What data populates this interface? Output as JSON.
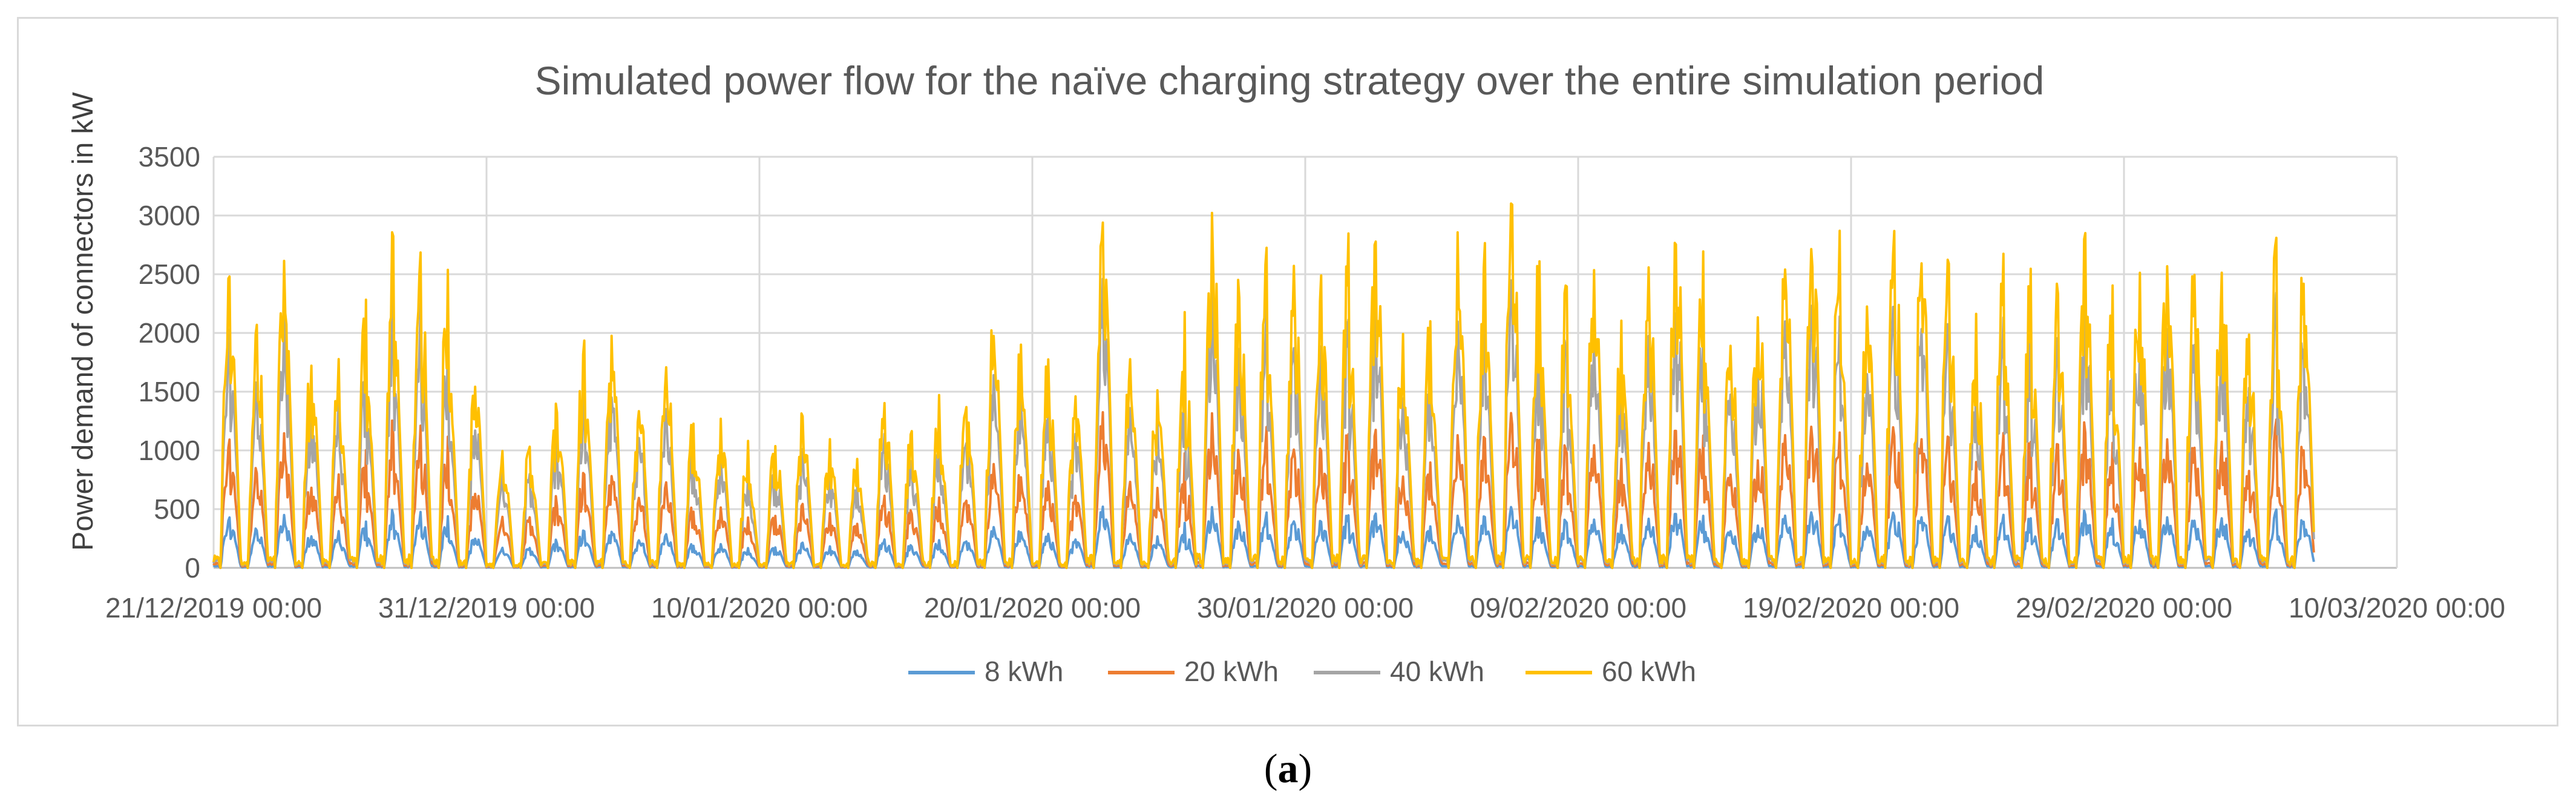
{
  "chart_data": {
    "type": "line",
    "title": "Simulated power flow for the naïve charging strategy over the entire simulation period",
    "ylabel": "Power demand of connectors in kW",
    "xlabel": "",
    "ylim": [
      0,
      3500
    ],
    "yticks": [
      0,
      500,
      1000,
      1500,
      2000,
      2500,
      3000,
      3500
    ],
    "xlim": [
      "2019-12-21 00:00",
      "2020-03-10 00:00"
    ],
    "xtick_labels": [
      "21/12/2019 00:00",
      "31/12/2019 00:00",
      "10/01/2020 00:00",
      "20/01/2020 00:00",
      "30/01/2020 00:00",
      "09/02/2020 00:00",
      "19/02/2020 00:00",
      "29/02/2020 00:00",
      "10/03/2020 00:00"
    ],
    "grid": true,
    "legend_position": "bottom",
    "series": [
      {
        "name": "8 kWh",
        "color": "#5b9bd5",
        "scale": 0.165
      },
      {
        "name": "20 kWh",
        "color": "#ed7d31",
        "scale": 0.42
      },
      {
        "name": "40 kWh",
        "color": "#a5a5a5",
        "scale": 0.78
      },
      {
        "name": "60 kWh",
        "color": "#ffc000",
        "scale": 1.0
      }
    ],
    "daily_peak_60kWh": [
      2600,
      2120,
      2650,
      1850,
      1880,
      2300,
      2870,
      2880,
      2600,
      1600,
      1000,
      1050,
      1400,
      1990,
      2000,
      1400,
      1830,
      1320,
      1280,
      1100,
      1100,
      1330,
      1100,
      1000,
      1460,
      1230,
      1520,
      1460,
      2140,
      2000,
      1900,
      1500,
      3060,
      1890,
      1600,
      2200,
      3030,
      2500,
      2930,
      2600,
      2500,
      2950,
      2900,
      2000,
      2150,
      2950,
      2800,
      3190,
      2760,
      2470,
      2560,
      2200,
      2600,
      2800,
      2700,
      2000,
      2300,
      2700,
      2750,
      2900,
      2300,
      2900,
      2600,
      2700,
      2300,
      2700,
      2600,
      2450,
      2900,
      2600,
      2700,
      2650,
      2700,
      2600,
      2150,
      2900,
      2600
    ]
  },
  "caption": {
    "label": "a"
  }
}
